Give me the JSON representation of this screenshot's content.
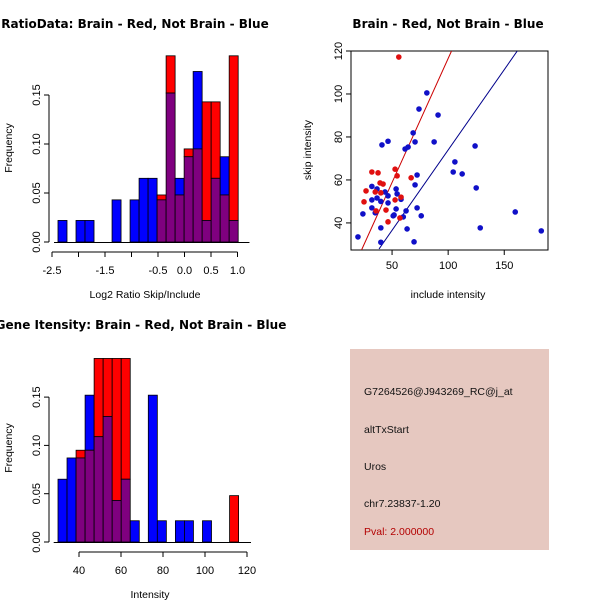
{
  "colors": {
    "brain": "#ff0000",
    "not_brain": "#0000ff",
    "overlap": "#7f007f",
    "brain_point": "#e01010",
    "not_brain_point": "#1010c8",
    "brain_line": "#cc0000",
    "not_brain_line": "#00008b",
    "info_bg": "#e6c8c0",
    "pval_text": "#b30000"
  },
  "chart_data": [
    {
      "type": "bar",
      "name": "ratio-histogram",
      "title": "RatioData: Brain - Red, Not Brain - Blue",
      "xlabel": "Log2 Ratio Skip/Include",
      "ylabel": "Frequency",
      "xlim": [
        -2.5,
        1.15
      ],
      "ylim": [
        0,
        0.19
      ],
      "xticks": [
        -2.5,
        -2.0,
        -1.5,
        -1.0,
        -0.5,
        0.0,
        0.5,
        1.0
      ],
      "xtick_labels": [
        "-2.5",
        "",
        "-1.5",
        "",
        "-0.5",
        "0.0",
        "0.5",
        "1.0"
      ],
      "yticks": [
        0.0,
        0.05,
        0.1,
        0.15
      ],
      "ytick_labels": [
        "0.00",
        "0.05",
        "0.10",
        "0.15"
      ],
      "bin_start": -2.387,
      "bin_width": 0.17,
      "series": [
        {
          "name": "Not Brain",
          "color": "blue",
          "values": [
            0.022,
            0,
            0.022,
            0.022,
            0,
            0,
            0.043,
            0,
            0.043,
            0.065,
            0.065,
            0.043,
            0.152,
            0.065,
            0.087,
            0.174,
            0.022,
            0.065,
            0.087,
            0.022
          ]
        },
        {
          "name": "Brain",
          "color": "red",
          "values": [
            0,
            0,
            0,
            0,
            0,
            0,
            0,
            0,
            0,
            0,
            0,
            0.048,
            0.19,
            0.048,
            0.095,
            0.095,
            0.143,
            0.143,
            0.048,
            0.19
          ]
        }
      ]
    },
    {
      "type": "scatter",
      "name": "intensity-scatter",
      "title": "Brain - Red, Not Brain - Blue",
      "xlabel": "include intensity",
      "ylabel": "skip intensity",
      "xlim": [
        13.4,
        189
      ],
      "ylim": [
        27.4,
        120
      ],
      "xticks": [
        50,
        100,
        150
      ],
      "yticks": [
        40,
        60,
        80,
        100,
        120
      ],
      "series": [
        {
          "name": "Not Brain",
          "color": "blue",
          "points": [
            [
              19.6,
              33.5
            ],
            [
              24,
              44.2
            ],
            [
              32,
              47
            ],
            [
              32,
              50.7
            ],
            [
              32,
              57
            ],
            [
              35,
              44.7
            ],
            [
              36.6,
              55.8
            ],
            [
              36.6,
              51.6
            ],
            [
              40,
              50
            ],
            [
              40,
              37.7
            ],
            [
              40,
              31
            ],
            [
              41,
              76.3
            ],
            [
              46.4,
              78
            ],
            [
              43.7,
              54.4
            ],
            [
              46.4,
              52.6
            ],
            [
              46.4,
              49.3
            ],
            [
              51,
              43.3
            ],
            [
              51.8,
              43.7
            ],
            [
              53.6,
              55.8
            ],
            [
              54.5,
              53.5
            ],
            [
              53.6,
              46.5
            ],
            [
              58,
              51
            ],
            [
              60,
              42.8
            ],
            [
              61.6,
              74.4
            ],
            [
              64.3,
              75.3
            ],
            [
              62.5,
              45.6
            ],
            [
              63.4,
              37.2
            ],
            [
              68.8,
              81.9
            ],
            [
              69.6,
              31.2
            ],
            [
              70.5,
              77.7
            ],
            [
              70.5,
              57.7
            ],
            [
              72.3,
              62.3
            ],
            [
              72.3,
              47
            ],
            [
              74,
              93
            ],
            [
              76,
              43.3
            ],
            [
              81,
              100.5
            ],
            [
              87.5,
              77.7
            ],
            [
              91,
              90.2
            ],
            [
              104.5,
              63.7
            ],
            [
              106,
              68.4
            ],
            [
              112.5,
              62.8
            ],
            [
              124,
              75.8
            ],
            [
              125,
              56.3
            ],
            [
              128.6,
              37.7
            ],
            [
              159.8,
              45.1
            ],
            [
              183,
              36.3
            ]
          ],
          "fit_line": [
            [
              38.4,
              27.9
            ],
            [
              161.6,
              120
            ]
          ]
        },
        {
          "name": "Brain",
          "color": "red",
          "points": [
            [
              56,
              117.2
            ],
            [
              25,
              49.8
            ],
            [
              26.8,
              54.9
            ],
            [
              32,
              63.7
            ],
            [
              35,
              54.4
            ],
            [
              37.5,
              63.3
            ],
            [
              39.3,
              58.6
            ],
            [
              42,
              58.1
            ],
            [
              40,
              54
            ],
            [
              35.7,
              45.6
            ],
            [
              44.6,
              46
            ],
            [
              46.4,
              40.5
            ],
            [
              52.7,
              65
            ],
            [
              54.5,
              61.9
            ],
            [
              52.7,
              50.7
            ],
            [
              58,
              52
            ],
            [
              57,
              42.3
            ],
            [
              67,
              61
            ]
          ],
          "fit_line": [
            [
              22.8,
              27.4
            ],
            [
              103,
              120
            ]
          ]
        }
      ]
    },
    {
      "type": "bar",
      "name": "gene-intensity-histogram",
      "title": "Gene Itensity: Brain - Red, Not Brain - Blue",
      "xlabel": "Intensity",
      "ylabel": "Frequency",
      "xlim": [
        27,
        120
      ],
      "ylim": [
        0,
        0.19
      ],
      "xticks": [
        40,
        60,
        80,
        100,
        120
      ],
      "xtick_labels": [
        "40",
        "60",
        "80",
        "100",
        "120"
      ],
      "yticks": [
        0.0,
        0.05,
        0.1,
        0.15
      ],
      "ytick_labels": [
        "0.00",
        "0.05",
        "0.10",
        "0.15"
      ],
      "bin_start": 30,
      "bin_width": 4.3,
      "series": [
        {
          "name": "Not Brain",
          "color": "blue",
          "values": [
            0.065,
            0.087,
            0.087,
            0.152,
            0.109,
            0.13,
            0.043,
            0.065,
            0.022,
            0,
            0.152,
            0.022,
            0,
            0.022,
            0.022,
            0,
            0.022,
            0,
            0,
            0
          ]
        },
        {
          "name": "Brain",
          "color": "red",
          "values": [
            0,
            0,
            0.095,
            0.095,
            0.19,
            0.19,
            0.19,
            0.19,
            0,
            0,
            0,
            0,
            0,
            0,
            0,
            0,
            0,
            0,
            0,
            0.048
          ]
        }
      ]
    }
  ],
  "info_panel": {
    "probe_id": "G7264526@J943269_RC@j_at",
    "event_type": "altTxStart",
    "gene": "Uros",
    "location": "chr7.23837-1.20",
    "pval": "Pval: 2.000000"
  }
}
